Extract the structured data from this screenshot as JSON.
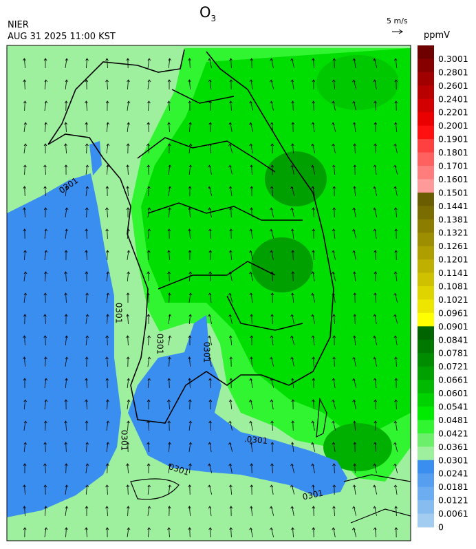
{
  "header": {
    "title": "O",
    "title_subscript": "3",
    "source": "NIER",
    "time": "AUG 31 2025 11:00 KST",
    "wind_reference": "5 m/s"
  },
  "colorbar": {
    "unit": "ppmV",
    "levels": [
      {
        "label": "0.3001",
        "color": "#6e0000"
      },
      {
        "label": "0.2801",
        "color": "#870000"
      },
      {
        "label": "0.2601",
        "color": "#a00000"
      },
      {
        "label": "0.2401",
        "color": "#b90000"
      },
      {
        "label": "0.2201",
        "color": "#d20000"
      },
      {
        "label": "0.2001",
        "color": "#eb0000"
      },
      {
        "label": "0.1901",
        "color": "#ff1010"
      },
      {
        "label": "0.1801",
        "color": "#ff4040"
      },
      {
        "label": "0.1701",
        "color": "#ff6060"
      },
      {
        "label": "0.1601",
        "color": "#ff7d7d"
      },
      {
        "label": "0.1501",
        "color": "#ff9a9a"
      },
      {
        "label": "0.1441",
        "color": "#6a5c00"
      },
      {
        "label": "0.1381",
        "color": "#7b6c00"
      },
      {
        "label": "0.1321",
        "color": "#8c7c00"
      },
      {
        "label": "0.1261",
        "color": "#9d8d00"
      },
      {
        "label": "0.1201",
        "color": "#ae9e00"
      },
      {
        "label": "0.1141",
        "color": "#bfb000"
      },
      {
        "label": "0.1081",
        "color": "#cfc100"
      },
      {
        "label": "0.1021",
        "color": "#dfd300"
      },
      {
        "label": "0.0961",
        "color": "#efe600"
      },
      {
        "label": "0.0901",
        "color": "#ffff00"
      },
      {
        "label": "0.0841",
        "color": "#006400"
      },
      {
        "label": "0.0781",
        "color": "#007800"
      },
      {
        "label": "0.0721",
        "color": "#008c00"
      },
      {
        "label": "0.0661",
        "color": "#00a000"
      },
      {
        "label": "0.0601",
        "color": "#00b900"
      },
      {
        "label": "0.0541",
        "color": "#00d200"
      },
      {
        "label": "0.0481",
        "color": "#00eb00"
      },
      {
        "label": "0.0421",
        "color": "#30f530"
      },
      {
        "label": "0.0361",
        "color": "#6cf06c"
      },
      {
        "label": "0.0301",
        "color": "#9ef09e"
      },
      {
        "label": "0.0241",
        "color": "#3a8ef0"
      },
      {
        "label": "0.0181",
        "color": "#559ef0"
      },
      {
        "label": "0.0121",
        "color": "#6cacf0"
      },
      {
        "label": "0.0061",
        "color": "#86bcf0"
      },
      {
        "label": "0",
        "color": "#a2ccf0"
      }
    ]
  },
  "contour_labels": [
    "0301",
    "0301",
    "0301",
    "0301",
    "0301",
    ".0301",
    "0301",
    "0301"
  ]
}
